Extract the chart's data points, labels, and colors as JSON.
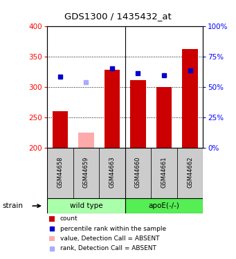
{
  "title": "GDS1300 / 1435432_at",
  "samples": [
    "GSM44658",
    "GSM44659",
    "GSM44663",
    "GSM44660",
    "GSM44661",
    "GSM44662"
  ],
  "bar_values": [
    260,
    225,
    328,
    311,
    300,
    362
  ],
  "bar_colors": [
    "#cc0000",
    "#ffaaaa",
    "#cc0000",
    "#cc0000",
    "#cc0000",
    "#cc0000"
  ],
  "dot_values": [
    317,
    308,
    330,
    322,
    319,
    327
  ],
  "dot_colors": [
    "#0000cc",
    "#aaaaff",
    "#0000cc",
    "#0000cc",
    "#0000cc",
    "#0000cc"
  ],
  "ylim": [
    200,
    400
  ],
  "y_ticks": [
    200,
    250,
    300,
    350,
    400
  ],
  "bar_bottom": 200,
  "bg_color_wt": "#aaffaa",
  "bg_color_apoe": "#55ee55",
  "legend_items": [
    {
      "label": "count",
      "color": "#cc0000",
      "is_dot": false
    },
    {
      "label": "percentile rank within the sample",
      "color": "#0000cc",
      "is_dot": true
    },
    {
      "label": "value, Detection Call = ABSENT",
      "color": "#ffaaaa",
      "is_dot": false
    },
    {
      "label": "rank, Detection Call = ABSENT",
      "color": "#aaaaff",
      "is_dot": true
    }
  ],
  "dot_size": 5,
  "bar_width": 0.6,
  "right_tick_labels": [
    "0%",
    "25%",
    "50%",
    "75%",
    "100%"
  ],
  "grid_lines": [
    250,
    300,
    350
  ]
}
